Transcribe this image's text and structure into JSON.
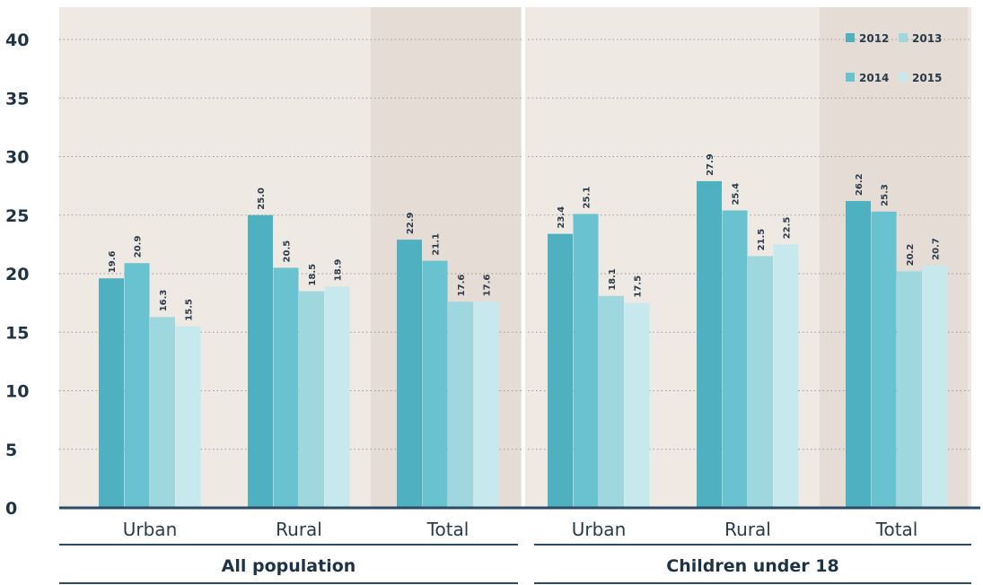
{
  "chart_data": {
    "type": "bar",
    "ylim": [
      0,
      40
    ],
    "yticks": [
      0,
      5,
      10,
      15,
      20,
      25,
      30,
      35,
      40
    ],
    "grid": true,
    "legend_position": "top-right",
    "groups": [
      {
        "label": "All population",
        "categories": [
          {
            "label": "Urban",
            "highlight": false,
            "values": [
              19.6,
              16.3,
              20.9,
              15.5
            ]
          },
          {
            "label": "Rural",
            "highlight": false,
            "values": [
              25.0,
              18.5,
              20.5,
              18.9
            ]
          },
          {
            "label": "Total",
            "highlight": true,
            "values": [
              22.9,
              17.6,
              21.1,
              17.6
            ]
          }
        ]
      },
      {
        "label": "Children under 18",
        "categories": [
          {
            "label": "Urban",
            "highlight": false,
            "values": [
              23.4,
              18.1,
              25.1,
              17.5
            ]
          },
          {
            "label": "Rural",
            "highlight": false,
            "values": [
              27.9,
              21.5,
              25.4,
              22.5
            ]
          },
          {
            "label": "Total",
            "highlight": true,
            "values": [
              26.2,
              20.2,
              25.3,
              20.7
            ]
          }
        ]
      }
    ],
    "series": [
      {
        "name": "2012",
        "color": "#4fb0bf"
      },
      {
        "name": "2013",
        "color": "#9fd7df"
      },
      {
        "name": "2014",
        "color": "#69c2cf"
      },
      {
        "name": "2015",
        "color": "#c7e8ed"
      }
    ],
    "bar_series_order": [
      0,
      2,
      1,
      3
    ],
    "colors": {
      "background": "#efe9e4",
      "highlight": "#e5dcd6",
      "axis": "#2e4b66",
      "grid": "#9a9a9a",
      "divider": "#ffffff"
    }
  }
}
